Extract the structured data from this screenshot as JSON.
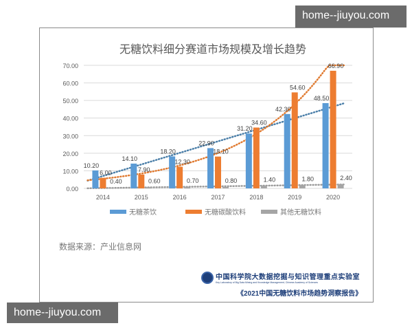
{
  "watermark": "home--jiuyou.com",
  "chart_data": {
    "type": "bar",
    "title": "无糖饮料细分赛道市场规模及增长趋势",
    "categories": [
      "2014",
      "2015",
      "2016",
      "2017",
      "2018",
      "2019",
      "2020"
    ],
    "ylim": [
      0,
      70
    ],
    "yticks": [
      "0.00",
      "10.00",
      "20.00",
      "30.00",
      "40.00",
      "50.00",
      "60.00",
      "70.00"
    ],
    "grid": true,
    "legend_position": "bottom",
    "trendlines": "dotted",
    "series": [
      {
        "name": "无糖茶饮",
        "color": "#5b9bd5",
        "trend_color": "#4a7ea8",
        "values": [
          10.2,
          14.1,
          18.2,
          22.9,
          31.2,
          42.3,
          48.5
        ],
        "labels": [
          "10.20",
          "14.10",
          "18.20",
          "22.90",
          "31.20",
          "42.30",
          "48.50"
        ]
      },
      {
        "name": "无糖碳酸饮料",
        "color": "#ed7d31",
        "trend_color": "#e07a30",
        "values": [
          6.0,
          7.9,
          12.3,
          18.1,
          34.6,
          54.6,
          66.9
        ],
        "labels": [
          "6.00",
          "7.90",
          "12.30",
          "18.10",
          "34.60",
          "54.60",
          "66.90"
        ]
      },
      {
        "name": "其他无糖饮料",
        "color": "#a5a5a5",
        "trend_color": "#999999",
        "values": [
          0.4,
          0.6,
          0.7,
          0.8,
          1.4,
          1.8,
          2.4
        ],
        "labels": [
          "0.40",
          "0.60",
          "0.70",
          "0.80",
          "1.40",
          "1.80",
          "2.40"
        ]
      }
    ]
  },
  "source": "数据来源：产业信息网",
  "logo": {
    "cn": "中国科学院大数据挖掘与知识管理重点实验室",
    "en": "Key Laboratory of Big Data Mining and Knowledge Management, Chinese Academy of Sciences"
  },
  "report": "《2021中国无糖饮料市场趋势洞察报告》"
}
